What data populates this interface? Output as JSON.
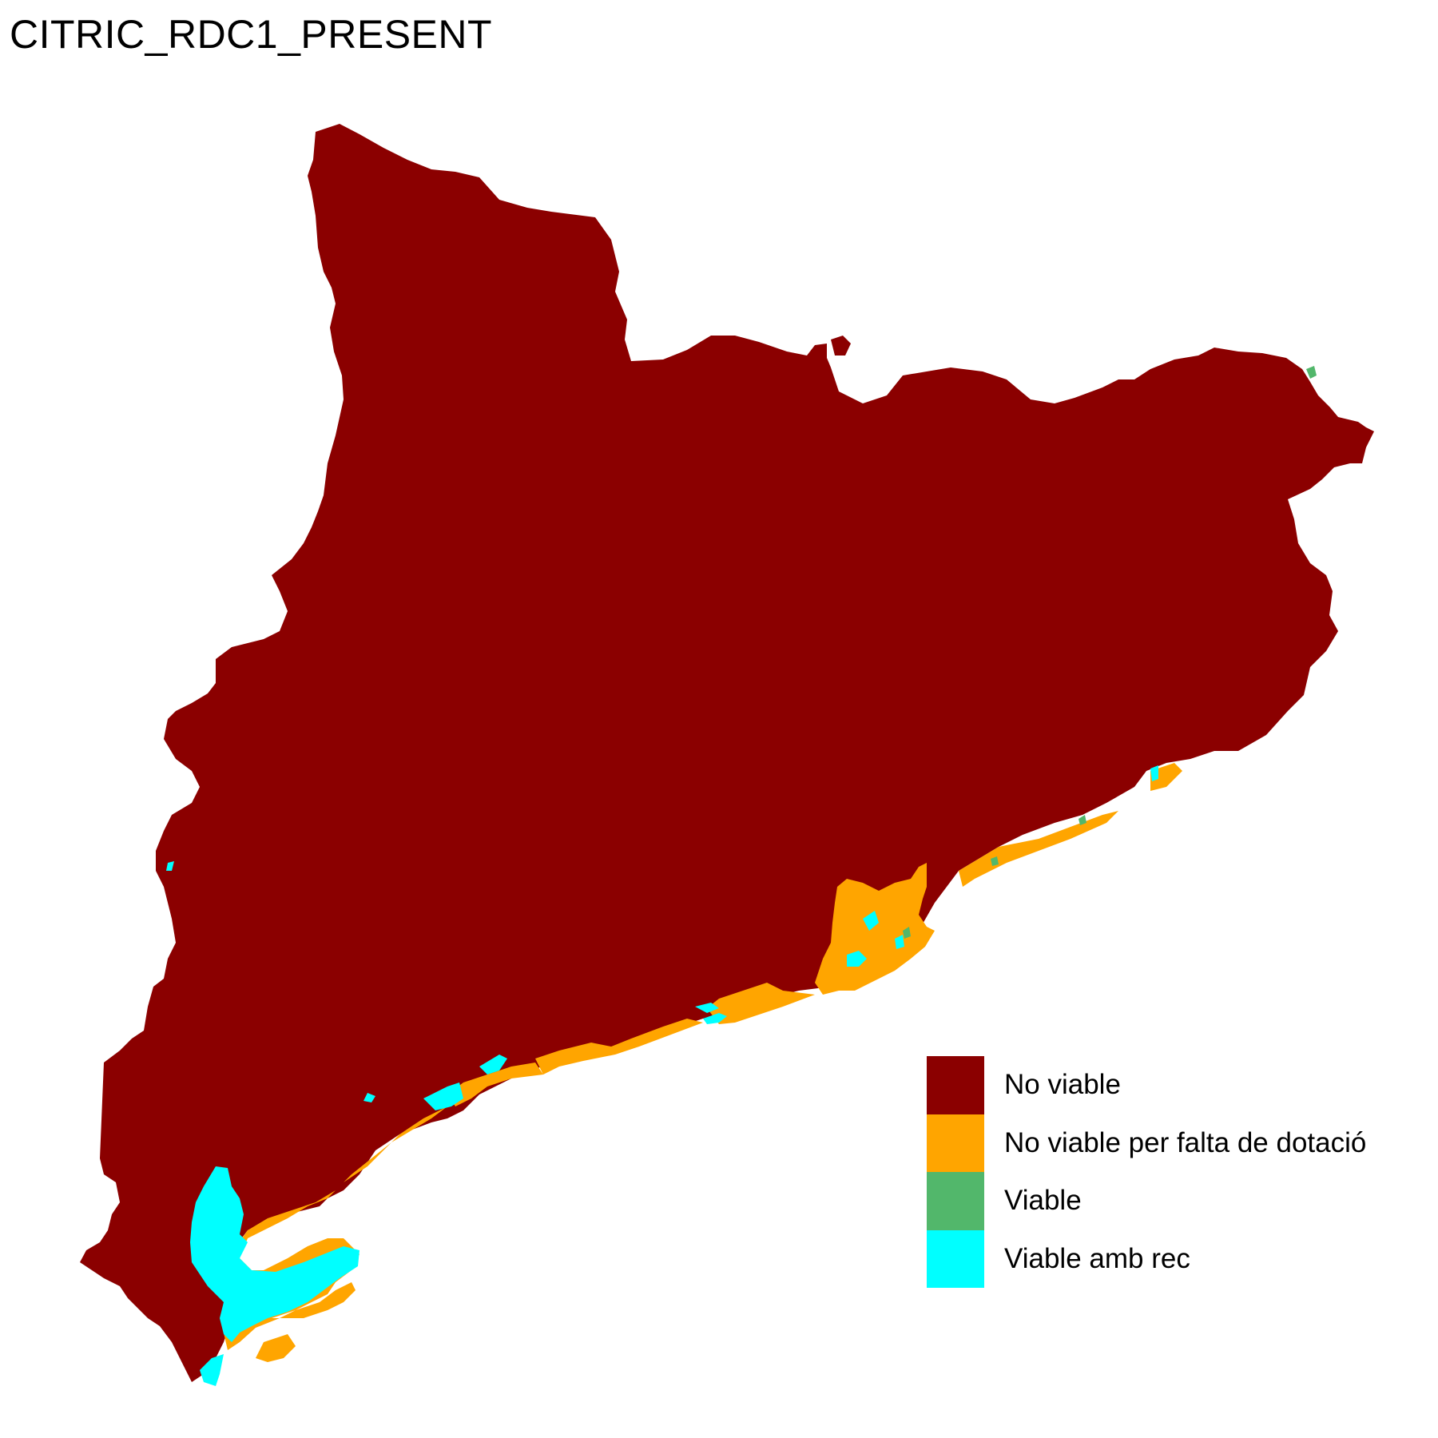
{
  "title": "CITRIC_RDC1_PRESENT",
  "legend": {
    "items": [
      {
        "label": "No viable",
        "color": "#8B0000"
      },
      {
        "label": "No viable per falta de dotació",
        "color": "#FFA500"
      },
      {
        "label": "Viable",
        "color": "#52B76B"
      },
      {
        "label": "Viable amb rec",
        "color": "#00FFFF"
      }
    ]
  }
}
